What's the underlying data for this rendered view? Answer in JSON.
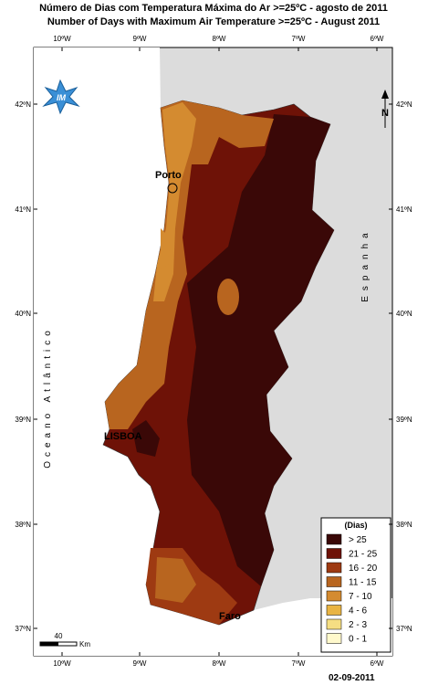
{
  "title_pt": "Número de Dias com Temperatura Máxima do Ar >=25ºC - agosto de 2011",
  "title_en": "Number of Days with Maximum Air Temperature >=25ºC - August 2011",
  "lon_labels": [
    "10ºW",
    "9ºW",
    "8ºW",
    "7ºW",
    "6ºW"
  ],
  "lat_labels": [
    "42ºN",
    "41ºN",
    "40ºN",
    "39ºN",
    "38ºN",
    "37ºN"
  ],
  "places": {
    "porto": "Porto",
    "lisboa": "LISBOA",
    "faro": "Faro"
  },
  "ocean": "Oceano Atlântico",
  "spain": "Espanha",
  "logo": "IM",
  "north": "N",
  "legend": {
    "title": "(Dias)",
    "items": [
      {
        "label": "> 25",
        "color": "#3a0807"
      },
      {
        "label": "21 - 25",
        "color": "#6e1207"
      },
      {
        "label": "16 - 20",
        "color": "#9e3a12"
      },
      {
        "label": "11 - 15",
        "color": "#b8651f"
      },
      {
        "label": "7 - 10",
        "color": "#d48b30"
      },
      {
        "label": "4 - 6",
        "color": "#e9b443"
      },
      {
        "label": "2 - 3",
        "color": "#f5de83"
      },
      {
        "label": "0 - 1",
        "color": "#fff9cc"
      }
    ]
  },
  "scale": {
    "value": "40",
    "unit": "Km"
  },
  "date": "02-09-2011"
}
